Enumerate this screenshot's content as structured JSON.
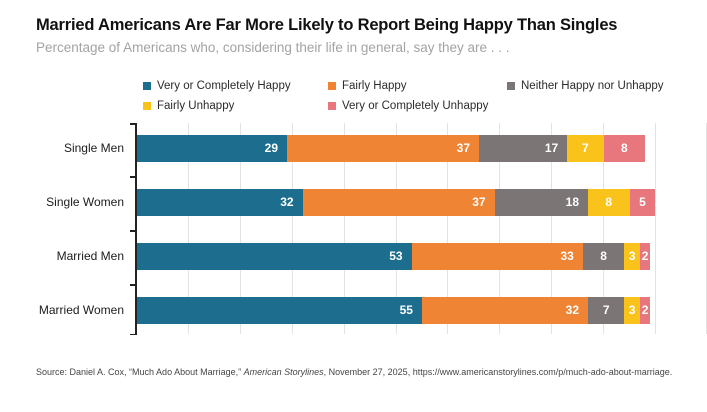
{
  "header": {
    "title": "Married Americans Are Far More Likely to Report Being Happy Than Singles",
    "subtitle": "Percentage of Americans who, considering their life in general, say they are . . ."
  },
  "colors": {
    "accent_teal": "#1d6e8e",
    "accent_orange": "#ee8434",
    "accent_gray": "#7b7575",
    "accent_yellow": "#f9c31b",
    "accent_salmon": "#e8767d",
    "gridline": "#e3e3e3",
    "axis": "#222222",
    "value_label": "#ffffff"
  },
  "chart_data": {
    "type": "bar",
    "stacked": true,
    "orientation": "horizontal",
    "title": "Married Americans Are Far More Likely to Report Being Happy Than Singles",
    "subtitle": "Percentage of Americans who, considering their life in general, say they are . . .",
    "categories": [
      "Single Men",
      "Single Women",
      "Married Men",
      "Married Women"
    ],
    "series": [
      {
        "name": "Very or Completely Happy",
        "color": "#1d6e8e",
        "values": [
          29,
          32,
          53,
          55
        ]
      },
      {
        "name": "Fairly Happy",
        "color": "#ee8434",
        "values": [
          37,
          37,
          33,
          32
        ]
      },
      {
        "name": "Neither Happy nor Unhappy",
        "color": "#7b7575",
        "values": [
          17,
          18,
          8,
          7
        ]
      },
      {
        "name": "Fairly Unhappy",
        "color": "#f9c31b",
        "values": [
          7,
          8,
          3,
          3
        ]
      },
      {
        "name": "Very or Completely Unhappy",
        "color": "#e8767d",
        "values": [
          8,
          5,
          2,
          2
        ]
      }
    ],
    "xlim": [
      0,
      110
    ],
    "gridline_step": 10,
    "grid": true,
    "legend_position": "top",
    "value_labels": "inside-end"
  },
  "source": {
    "prefix": "Source: Daniel A. Cox, “Much Ado About Marriage,” ",
    "italic": "American Storylines",
    "suffix": ", November 27, 2025, https://www.americanstorylines.com/p/much-ado-about-marriage."
  }
}
